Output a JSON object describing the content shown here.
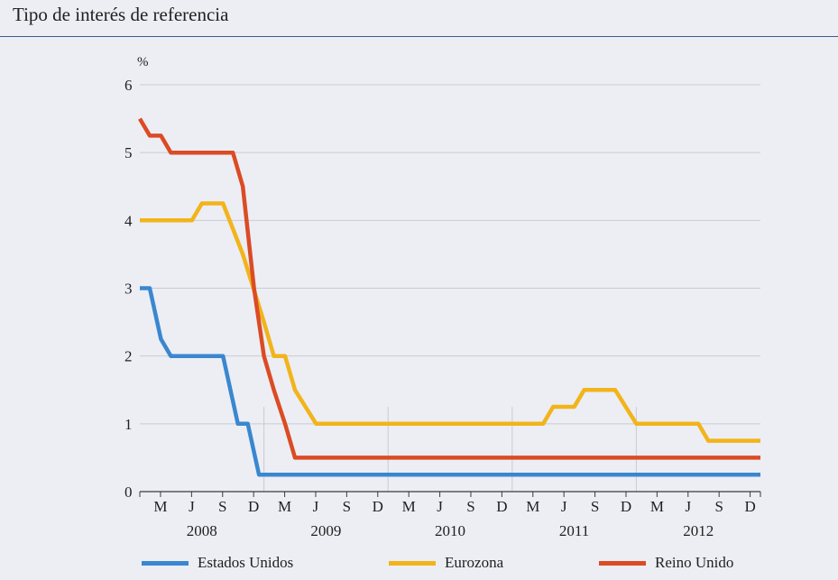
{
  "title": "Tipo de interés de referencia",
  "chart_data": {
    "type": "line",
    "unit_label": "%",
    "ylim": [
      0,
      6
    ],
    "yticks": [
      "0",
      "1",
      "2",
      "3",
      "4",
      "5",
      "6"
    ],
    "x_range": [
      2008.0,
      2013.0
    ],
    "month_ticks": [
      {
        "label": "M",
        "x": 2008.167
      },
      {
        "label": "J",
        "x": 2008.417
      },
      {
        "label": "S",
        "x": 2008.667
      },
      {
        "label": "D",
        "x": 2008.917
      },
      {
        "label": "M",
        "x": 2009.167
      },
      {
        "label": "J",
        "x": 2009.417
      },
      {
        "label": "S",
        "x": 2009.667
      },
      {
        "label": "D",
        "x": 2009.917
      },
      {
        "label": "M",
        "x": 2010.167
      },
      {
        "label": "J",
        "x": 2010.417
      },
      {
        "label": "S",
        "x": 2010.667
      },
      {
        "label": "D",
        "x": 2010.917
      },
      {
        "label": "M",
        "x": 2011.167
      },
      {
        "label": "J",
        "x": 2011.417
      },
      {
        "label": "S",
        "x": 2011.667
      },
      {
        "label": "D",
        "x": 2011.917
      },
      {
        "label": "M",
        "x": 2012.167
      },
      {
        "label": "J",
        "x": 2012.417
      },
      {
        "label": "S",
        "x": 2012.667
      },
      {
        "label": "D",
        "x": 2012.917
      }
    ],
    "years": [
      {
        "label": "2008",
        "x": 2008.5
      },
      {
        "label": "2009",
        "x": 2009.5
      },
      {
        "label": "2010",
        "x": 2010.5
      },
      {
        "label": "2011",
        "x": 2011.5
      },
      {
        "label": "2012",
        "x": 2012.5
      }
    ],
    "year_boundaries": [
      2009.0,
      2010.0,
      2011.0,
      2012.0
    ],
    "series": [
      {
        "name": "Estados Unidos",
        "color": "#3a87d0",
        "points": [
          [
            2008.0,
            3.0
          ],
          [
            2008.08,
            3.0
          ],
          [
            2008.17,
            2.25
          ],
          [
            2008.25,
            2.0
          ],
          [
            2008.67,
            2.0
          ],
          [
            2008.79,
            1.0
          ],
          [
            2008.87,
            1.0
          ],
          [
            2008.96,
            0.25
          ],
          [
            2013.0,
            0.25
          ]
        ]
      },
      {
        "name": "Eurozona",
        "color": "#f2b41b",
        "points": [
          [
            2008.0,
            4.0
          ],
          [
            2008.42,
            4.0
          ],
          [
            2008.5,
            4.25
          ],
          [
            2008.67,
            4.25
          ],
          [
            2008.83,
            3.5
          ],
          [
            2009.0,
            2.5
          ],
          [
            2009.08,
            2.0
          ],
          [
            2009.17,
            2.0
          ],
          [
            2009.25,
            1.5
          ],
          [
            2009.42,
            1.0
          ],
          [
            2011.25,
            1.0
          ],
          [
            2011.33,
            1.25
          ],
          [
            2011.5,
            1.25
          ],
          [
            2011.58,
            1.5
          ],
          [
            2011.83,
            1.5
          ],
          [
            2012.0,
            1.0
          ],
          [
            2012.5,
            1.0
          ],
          [
            2012.58,
            0.75
          ],
          [
            2013.0,
            0.75
          ]
        ]
      },
      {
        "name": "Reino Unido",
        "color": "#db4b24",
        "points": [
          [
            2008.0,
            5.5
          ],
          [
            2008.08,
            5.25
          ],
          [
            2008.17,
            5.25
          ],
          [
            2008.25,
            5.0
          ],
          [
            2008.75,
            5.0
          ],
          [
            2008.83,
            4.5
          ],
          [
            2008.92,
            3.0
          ],
          [
            2009.0,
            2.0
          ],
          [
            2009.08,
            1.5
          ],
          [
            2009.17,
            1.0
          ],
          [
            2009.25,
            0.5
          ],
          [
            2013.0,
            0.5
          ]
        ]
      }
    ]
  },
  "legend": [
    {
      "label": "Estados Unidos",
      "color": "#3a87d0"
    },
    {
      "label": "Eurozona",
      "color": "#f2b41b"
    },
    {
      "label": "Reino Unido",
      "color": "#db4b24"
    }
  ]
}
